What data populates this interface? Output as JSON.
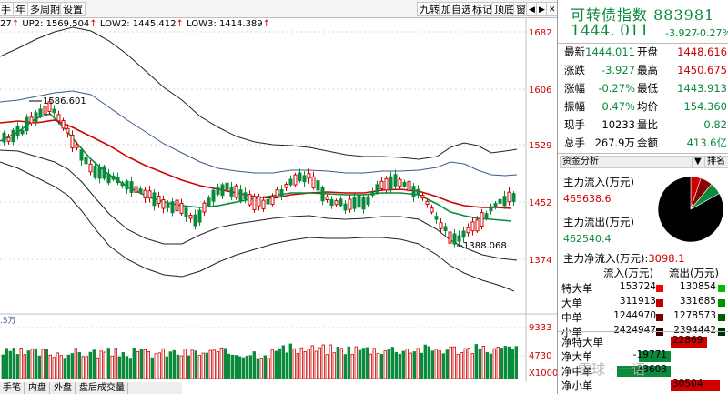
{
  "toolbar": {
    "left_buttons": [
      "手",
      "年",
      "多周期",
      "设置"
    ],
    "right_buttons": [
      "九转",
      "加自选",
      "标记",
      "顶底",
      "窗",
      "◀",
      "▶",
      "✕"
    ]
  },
  "indicator": {
    "prefix": "27",
    "up2": "UP2: 1569.504",
    "low2": "LOW2: 1445.412",
    "low3": "LOW3: 1414.389"
  },
  "price_axis": [
    "1682",
    "1606",
    "1529",
    "1452",
    "1374"
  ],
  "annotations": {
    "high": "1586.601",
    "low": "1388.068"
  },
  "volume_axis": [
    "9333",
    "4730",
    "X1000"
  ],
  "volume_unit": ".5万",
  "bottom_tabs": [
    "手笔",
    "内盘",
    "外盘",
    "盘后成交量"
  ],
  "panel": {
    "title": "可转债指数",
    "code": "883981",
    "price": "1444. 011",
    "change": "-3.927",
    "change_pct": "-0.27%",
    "quotes": [
      {
        "l1": "最新",
        "v1": "1444.011",
        "c1": "g",
        "l2": "开盘",
        "v2": "1448.616",
        "c2": "r"
      },
      {
        "l1": "涨跌",
        "v1": "-3.927",
        "c1": "g",
        "l2": "最高",
        "v2": "1450.675",
        "c2": "r"
      },
      {
        "l1": "涨幅",
        "v1": "-0.27%",
        "c1": "g",
        "l2": "最低",
        "v2": "1443.913",
        "c2": "g"
      },
      {
        "l1": "振幅",
        "v1": "0.47%",
        "c1": "g",
        "l2": "均价",
        "v2": "154.360",
        "c2": "g"
      },
      {
        "l1": "现手",
        "v1": "10233",
        "c1": "k",
        "l2": "量比",
        "v2": "0.82",
        "c2": "g"
      },
      {
        "l1": "总手",
        "v1": "267.9万",
        "c1": "k",
        "l2": "金额",
        "v2": "413.6亿",
        "c2": "g"
      }
    ],
    "fund_tabs": [
      "资金分析",
      "▼",
      "排名"
    ],
    "inflow_label": "主力流入(万元)",
    "inflow_value": "465638.6",
    "outflow_label": "主力流出(万元)",
    "outflow_value": "462540.4",
    "net_label": "主力净流入(万元):",
    "net_value": "3098.1",
    "flow_header_in": "流入(万元)",
    "flow_header_out": "流出(万元)",
    "flow_rows": [
      {
        "label": "特大单",
        "in": "153724",
        "out": "130854"
      },
      {
        "label": "大单",
        "in": "311913",
        "out": "331685"
      },
      {
        "label": "中单",
        "in": "1244970",
        "out": "1278573"
      },
      {
        "label": "小单",
        "in": "2424947",
        "out": "2394442"
      }
    ],
    "net_rows": [
      {
        "label": "净特大单",
        "value": "22869"
      },
      {
        "label": "净大单",
        "value": "-19771"
      },
      {
        "label": "净中单",
        "value": "-33603"
      },
      {
        "label": "净小单",
        "value": "30504"
      }
    ],
    "pie": [
      {
        "name": "特大单流入",
        "share": 0.05,
        "color": "#d10000"
      },
      {
        "name": "大单流入",
        "share": 0.06,
        "color": "#8b0000"
      },
      {
        "name": "流出",
        "share": 0.06,
        "color": "#0a8a3b"
      },
      {
        "name": "other",
        "share": 0.83,
        "color": "#000000"
      }
    ],
    "watermark": "雪球 · 一语"
  },
  "chart_data": {
    "type": "candlestick",
    "price_range": [
      1360,
      1700
    ],
    "ticks": [
      1682,
      1606,
      1529,
      1452,
      1374
    ]
  }
}
